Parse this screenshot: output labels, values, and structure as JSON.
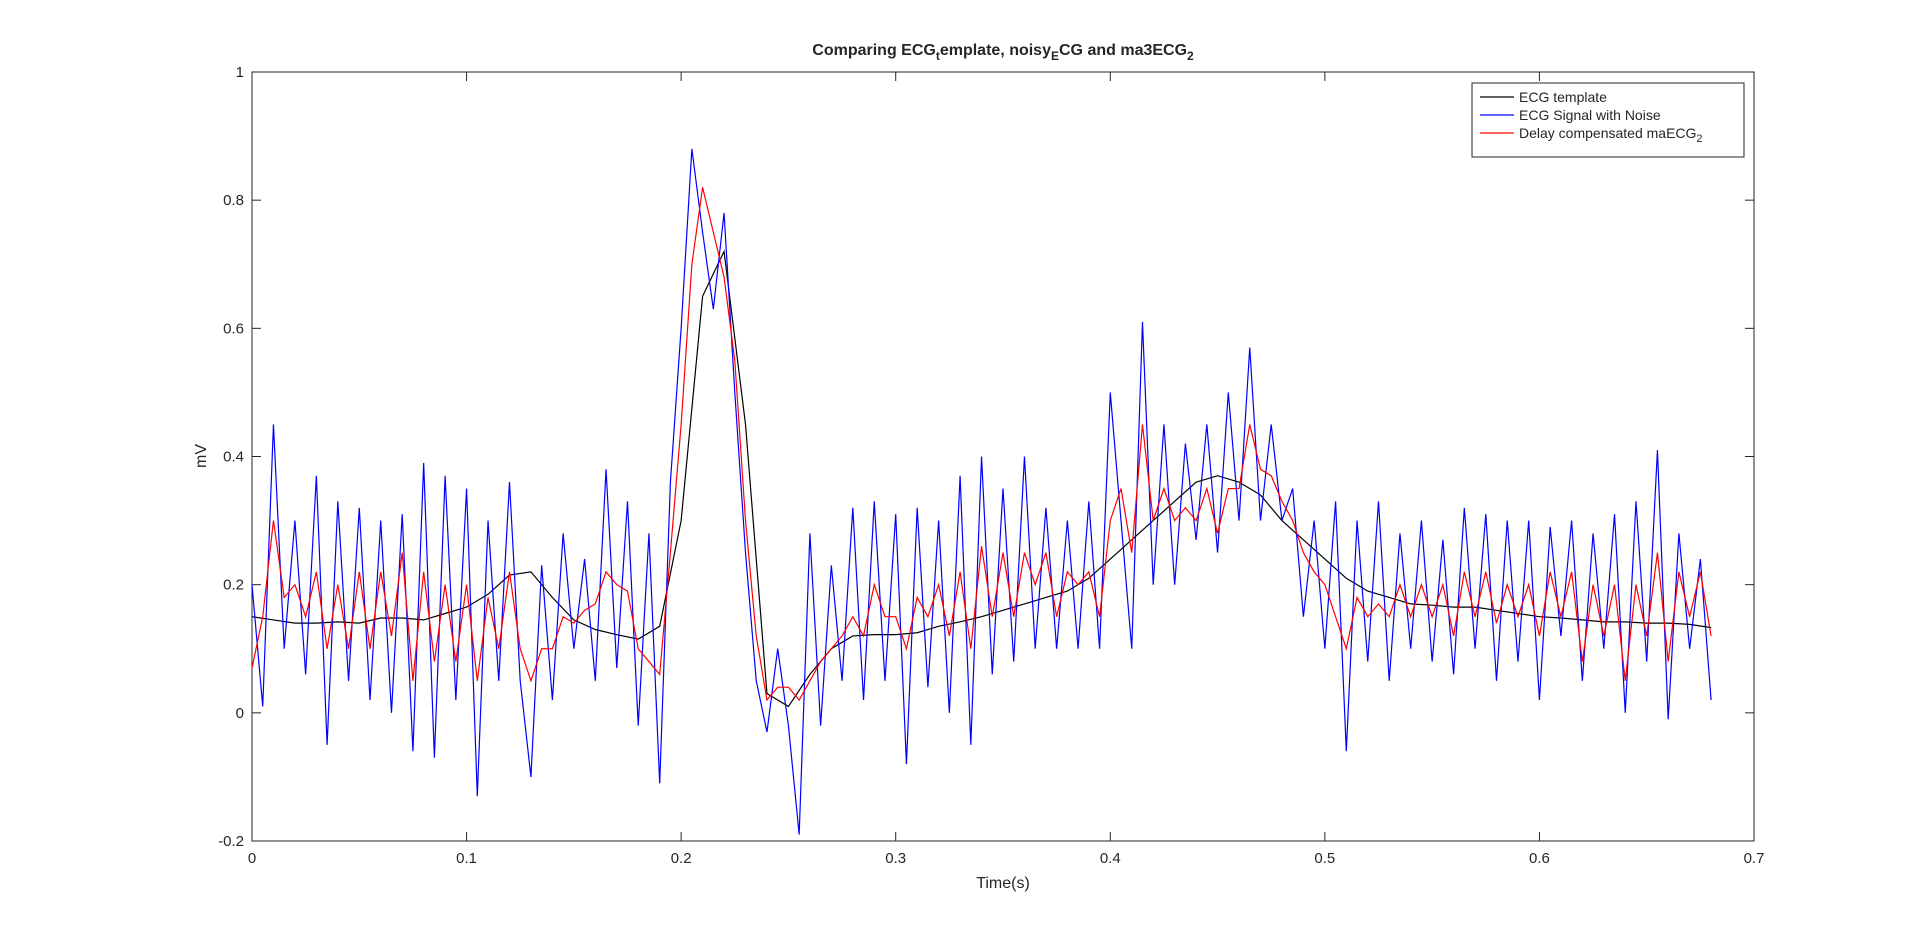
{
  "chart_data": {
    "type": "line",
    "title": [
      "Comparing ECG",
      "t",
      "emplate, noisy",
      "E",
      "CG and ma3ECG",
      "2"
    ],
    "xlabel": "Time(s)",
    "ylabel": "mV",
    "xlim": [
      0,
      0.7
    ],
    "ylim": [
      -0.2,
      1
    ],
    "xticks": [
      0,
      0.1,
      0.2,
      0.3,
      0.4,
      0.5,
      0.6,
      0.7
    ],
    "yticks": [
      -0.2,
      0,
      0.2,
      0.4,
      0.6,
      0.8,
      1
    ],
    "legend": "upper right",
    "series": [
      {
        "name": "ECG template",
        "color": "#000000",
        "x": [
          0,
          0.01,
          0.02,
          0.03,
          0.04,
          0.05,
          0.06,
          0.07,
          0.08,
          0.09,
          0.1,
          0.11,
          0.12,
          0.13,
          0.14,
          0.15,
          0.16,
          0.17,
          0.18,
          0.19,
          0.2,
          0.21,
          0.22,
          0.23,
          0.24,
          0.25,
          0.26,
          0.27,
          0.28,
          0.29,
          0.3,
          0.31,
          0.32,
          0.33,
          0.34,
          0.35,
          0.36,
          0.37,
          0.38,
          0.39,
          0.4,
          0.41,
          0.42,
          0.43,
          0.44,
          0.45,
          0.46,
          0.47,
          0.48,
          0.49,
          0.5,
          0.51,
          0.52,
          0.53,
          0.54,
          0.55,
          0.56,
          0.57,
          0.58,
          0.59,
          0.6,
          0.61,
          0.62,
          0.63,
          0.64,
          0.65,
          0.66,
          0.67,
          0.68
        ],
        "values": [
          0.15,
          0.145,
          0.14,
          0.14,
          0.142,
          0.14,
          0.148,
          0.148,
          0.145,
          0.155,
          0.165,
          0.185,
          0.215,
          0.22,
          0.18,
          0.145,
          0.13,
          0.122,
          0.115,
          0.135,
          0.3,
          0.65,
          0.72,
          0.45,
          0.03,
          0.01,
          0.06,
          0.1,
          0.12,
          0.122,
          0.122,
          0.125,
          0.135,
          0.142,
          0.15,
          0.16,
          0.17,
          0.18,
          0.19,
          0.21,
          0.24,
          0.27,
          0.3,
          0.33,
          0.36,
          0.37,
          0.36,
          0.34,
          0.3,
          0.27,
          0.24,
          0.21,
          0.19,
          0.18,
          0.17,
          0.168,
          0.165,
          0.165,
          0.16,
          0.155,
          0.15,
          0.148,
          0.145,
          0.142,
          0.142,
          0.14,
          0.14,
          0.138,
          0.133
        ]
      },
      {
        "name": "ECG Signal with Noise",
        "color": "#0000ff",
        "x": [
          0,
          0.005,
          0.01,
          0.015,
          0.02,
          0.025,
          0.03,
          0.035,
          0.04,
          0.045,
          0.05,
          0.055,
          0.06,
          0.065,
          0.07,
          0.075,
          0.08,
          0.085,
          0.09,
          0.095,
          0.1,
          0.105,
          0.11,
          0.115,
          0.12,
          0.125,
          0.13,
          0.135,
          0.14,
          0.145,
          0.15,
          0.155,
          0.16,
          0.165,
          0.17,
          0.175,
          0.18,
          0.185,
          0.19,
          0.195,
          0.2,
          0.205,
          0.21,
          0.215,
          0.22,
          0.225,
          0.23,
          0.235,
          0.24,
          0.245,
          0.25,
          0.255,
          0.26,
          0.265,
          0.27,
          0.275,
          0.28,
          0.285,
          0.29,
          0.295,
          0.3,
          0.305,
          0.31,
          0.315,
          0.32,
          0.325,
          0.33,
          0.335,
          0.34,
          0.345,
          0.35,
          0.355,
          0.36,
          0.365,
          0.37,
          0.375,
          0.38,
          0.385,
          0.39,
          0.395,
          0.4,
          0.405,
          0.41,
          0.415,
          0.42,
          0.425,
          0.43,
          0.435,
          0.44,
          0.445,
          0.45,
          0.455,
          0.46,
          0.465,
          0.47,
          0.475,
          0.48,
          0.485,
          0.49,
          0.495,
          0.5,
          0.505,
          0.51,
          0.515,
          0.52,
          0.525,
          0.53,
          0.535,
          0.54,
          0.545,
          0.55,
          0.555,
          0.56,
          0.565,
          0.57,
          0.575,
          0.58,
          0.585,
          0.59,
          0.595,
          0.6,
          0.605,
          0.61,
          0.615,
          0.62,
          0.625,
          0.63,
          0.635,
          0.64,
          0.645,
          0.65,
          0.655,
          0.66,
          0.665,
          0.67,
          0.675,
          0.68
        ],
        "values": [
          0.2,
          0.01,
          0.45,
          0.1,
          0.3,
          0.06,
          0.37,
          -0.05,
          0.33,
          0.05,
          0.32,
          0.02,
          0.3,
          0,
          0.31,
          -0.06,
          0.39,
          -0.07,
          0.37,
          0.02,
          0.35,
          -0.13,
          0.3,
          0.05,
          0.36,
          0.05,
          -0.1,
          0.23,
          0.02,
          0.28,
          0.1,
          0.24,
          0.05,
          0.38,
          0.07,
          0.33,
          -0.02,
          0.28,
          -0.11,
          0.36,
          0.6,
          0.88,
          0.75,
          0.63,
          0.78,
          0.5,
          0.25,
          0.05,
          -0.03,
          0.1,
          -0.02,
          -0.19,
          0.28,
          -0.02,
          0.23,
          0.05,
          0.32,
          0.02,
          0.33,
          0.05,
          0.31,
          -0.08,
          0.32,
          0.04,
          0.3,
          0,
          0.37,
          -0.05,
          0.4,
          0.06,
          0.35,
          0.08,
          0.4,
          0.1,
          0.32,
          0.1,
          0.3,
          0.1,
          0.33,
          0.1,
          0.5,
          0.3,
          0.1,
          0.61,
          0.2,
          0.45,
          0.2,
          0.42,
          0.27,
          0.45,
          0.25,
          0.5,
          0.3,
          0.57,
          0.3,
          0.45,
          0.3,
          0.35,
          0.15,
          0.3,
          0.1,
          0.33,
          -0.06,
          0.3,
          0.08,
          0.33,
          0.05,
          0.28,
          0.1,
          0.3,
          0.08,
          0.27,
          0.06,
          0.32,
          0.1,
          0.31,
          0.05,
          0.3,
          0.08,
          0.3,
          0.02,
          0.29,
          0.12,
          0.3,
          0.05,
          0.28,
          0.1,
          0.31,
          0,
          0.33,
          0.08,
          0.41,
          -0.01,
          0.28,
          0.1,
          0.24,
          0.02
        ]
      },
      {
        "name": "Delay compensated maECG",
        "name_sub": "2",
        "color": "#ff0000",
        "x": [
          0,
          0.005,
          0.01,
          0.015,
          0.02,
          0.025,
          0.03,
          0.035,
          0.04,
          0.045,
          0.05,
          0.055,
          0.06,
          0.065,
          0.07,
          0.075,
          0.08,
          0.085,
          0.09,
          0.095,
          0.1,
          0.105,
          0.11,
          0.115,
          0.12,
          0.125,
          0.13,
          0.135,
          0.14,
          0.145,
          0.15,
          0.155,
          0.16,
          0.165,
          0.17,
          0.175,
          0.18,
          0.185,
          0.19,
          0.195,
          0.2,
          0.205,
          0.21,
          0.215,
          0.22,
          0.225,
          0.23,
          0.235,
          0.24,
          0.245,
          0.25,
          0.255,
          0.26,
          0.265,
          0.27,
          0.275,
          0.28,
          0.285,
          0.29,
          0.295,
          0.3,
          0.305,
          0.31,
          0.315,
          0.32,
          0.325,
          0.33,
          0.335,
          0.34,
          0.345,
          0.35,
          0.355,
          0.36,
          0.365,
          0.37,
          0.375,
          0.38,
          0.385,
          0.39,
          0.395,
          0.4,
          0.405,
          0.41,
          0.415,
          0.42,
          0.425,
          0.43,
          0.435,
          0.44,
          0.445,
          0.45,
          0.455,
          0.46,
          0.465,
          0.47,
          0.475,
          0.48,
          0.485,
          0.49,
          0.495,
          0.5,
          0.505,
          0.51,
          0.515,
          0.52,
          0.525,
          0.53,
          0.535,
          0.54,
          0.545,
          0.55,
          0.555,
          0.56,
          0.565,
          0.57,
          0.575,
          0.58,
          0.585,
          0.59,
          0.595,
          0.6,
          0.605,
          0.61,
          0.615,
          0.62,
          0.625,
          0.63,
          0.635,
          0.64,
          0.645,
          0.65,
          0.655,
          0.66,
          0.665,
          0.67,
          0.675,
          0.68
        ],
        "values": [
          0.07,
          0.15,
          0.3,
          0.18,
          0.2,
          0.15,
          0.22,
          0.1,
          0.2,
          0.1,
          0.22,
          0.1,
          0.22,
          0.12,
          0.25,
          0.05,
          0.22,
          0.08,
          0.2,
          0.08,
          0.2,
          0.05,
          0.18,
          0.1,
          0.22,
          0.1,
          0.05,
          0.1,
          0.1,
          0.15,
          0.14,
          0.16,
          0.17,
          0.22,
          0.2,
          0.19,
          0.1,
          0.08,
          0.06,
          0.25,
          0.45,
          0.7,
          0.82,
          0.75,
          0.68,
          0.55,
          0.3,
          0.12,
          0.02,
          0.04,
          0.04,
          0.02,
          0.05,
          0.08,
          0.1,
          0.12,
          0.15,
          0.12,
          0.2,
          0.15,
          0.15,
          0.1,
          0.18,
          0.15,
          0.2,
          0.12,
          0.22,
          0.1,
          0.26,
          0.15,
          0.25,
          0.15,
          0.25,
          0.2,
          0.25,
          0.15,
          0.22,
          0.2,
          0.22,
          0.15,
          0.3,
          0.35,
          0.25,
          0.45,
          0.3,
          0.35,
          0.3,
          0.32,
          0.3,
          0.35,
          0.28,
          0.35,
          0.35,
          0.45,
          0.38,
          0.37,
          0.33,
          0.3,
          0.25,
          0.22,
          0.2,
          0.15,
          0.1,
          0.18,
          0.15,
          0.17,
          0.15,
          0.2,
          0.15,
          0.2,
          0.15,
          0.2,
          0.12,
          0.22,
          0.15,
          0.22,
          0.14,
          0.2,
          0.15,
          0.2,
          0.12,
          0.22,
          0.15,
          0.22,
          0.08,
          0.2,
          0.12,
          0.2,
          0.05,
          0.2,
          0.12,
          0.25,
          0.08,
          0.22,
          0.15,
          0.22,
          0.12
        ]
      }
    ]
  }
}
